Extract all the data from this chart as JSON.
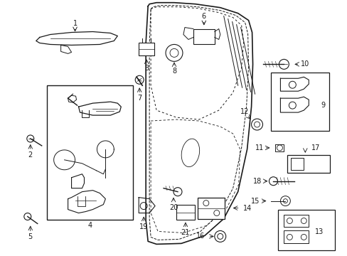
{
  "bg_color": "#ffffff",
  "fg_color": "#1a1a1a",
  "fig_width": 4.89,
  "fig_height": 3.6,
  "dpi": 100
}
